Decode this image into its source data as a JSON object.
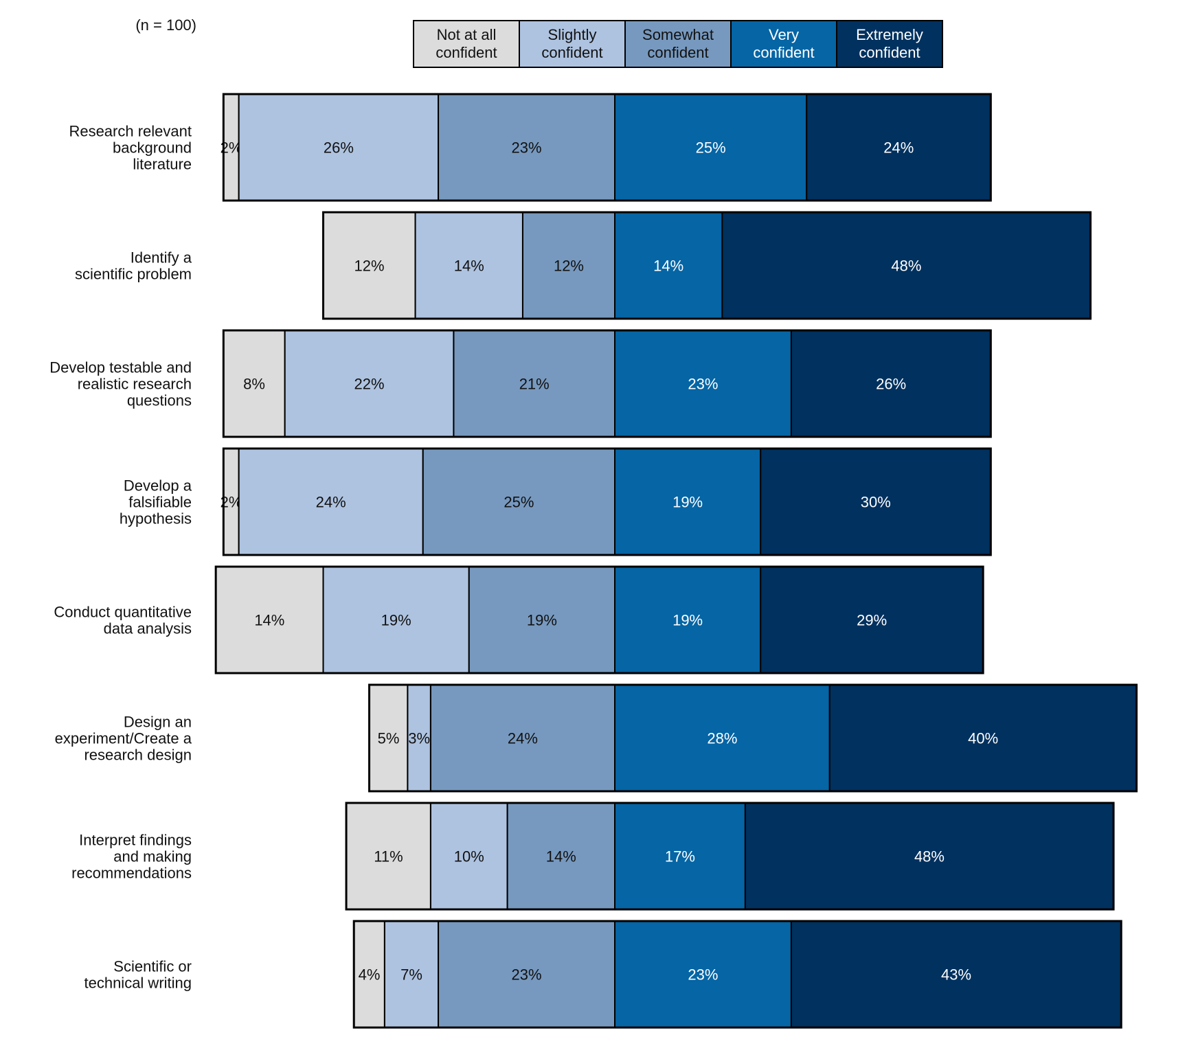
{
  "chart_data": {
    "type": "bar",
    "orientation": "horizontal",
    "stacked": "diverging",
    "annotation": "(n = 100)",
    "legend_position": "top",
    "categories": [
      "Research relevant\nbackground\nliterature",
      "Identify a\nscientific problem",
      "Develop testable and\nrealistic research\nquestions",
      "Develop a\nfalsifiable\nhypothesis",
      "Conduct quantitative\ndata analysis",
      "Design an\nexperiment/Create a\nresearch design",
      "Interpret findings\nand making\nrecommendations",
      "Scientific or\ntechnical writing"
    ],
    "series": [
      {
        "name": "Not at all\nconfident",
        "color": "#dcdcdc",
        "text_color": "#111111",
        "values": [
          2,
          12,
          8,
          2,
          14,
          5,
          11,
          4
        ]
      },
      {
        "name": "Slightly\nconfident",
        "color": "#aec3e0",
        "text_color": "#111111",
        "values": [
          26,
          14,
          22,
          24,
          19,
          3,
          10,
          7
        ]
      },
      {
        "name": "Somewhat\nconfident",
        "color": "#7799bf",
        "text_color": "#111111",
        "values": [
          23,
          12,
          21,
          25,
          19,
          24,
          14,
          23
        ]
      },
      {
        "name": "Very\nconfident",
        "color": "#0565a5",
        "text_color": "#ffffff",
        "values": [
          25,
          14,
          23,
          19,
          19,
          28,
          17,
          23
        ]
      },
      {
        "name": "Extremely\nconfident",
        "color": "#00315f",
        "text_color": "#ffffff",
        "values": [
          24,
          48,
          26,
          30,
          29,
          40,
          48,
          43
        ]
      }
    ],
    "value_suffix": "%",
    "grid": false
  }
}
